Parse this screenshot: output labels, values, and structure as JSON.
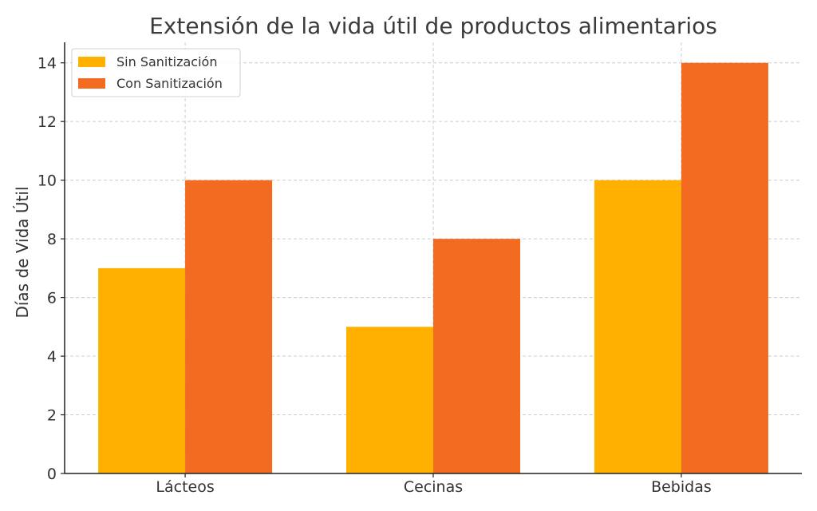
{
  "chart_data": {
    "type": "bar",
    "title": "Extensión de la vida útil de productos alimentarios",
    "xlabel": "",
    "ylabel": "Días de Vida Útil",
    "categories": [
      "Lácteos",
      "Cecinas",
      "Bebidas"
    ],
    "series": [
      {
        "name": "Sin Sanitización",
        "values": [
          7,
          5,
          10
        ],
        "color": "#FFB000"
      },
      {
        "name": "Con Sanitización",
        "values": [
          10,
          8,
          14
        ],
        "color": "#F26B21"
      }
    ],
    "ylim": [
      0,
      14.7
    ],
    "yticks": [
      0,
      2,
      4,
      6,
      8,
      10,
      12,
      14
    ],
    "grid": true,
    "legend_position": "top-left"
  }
}
